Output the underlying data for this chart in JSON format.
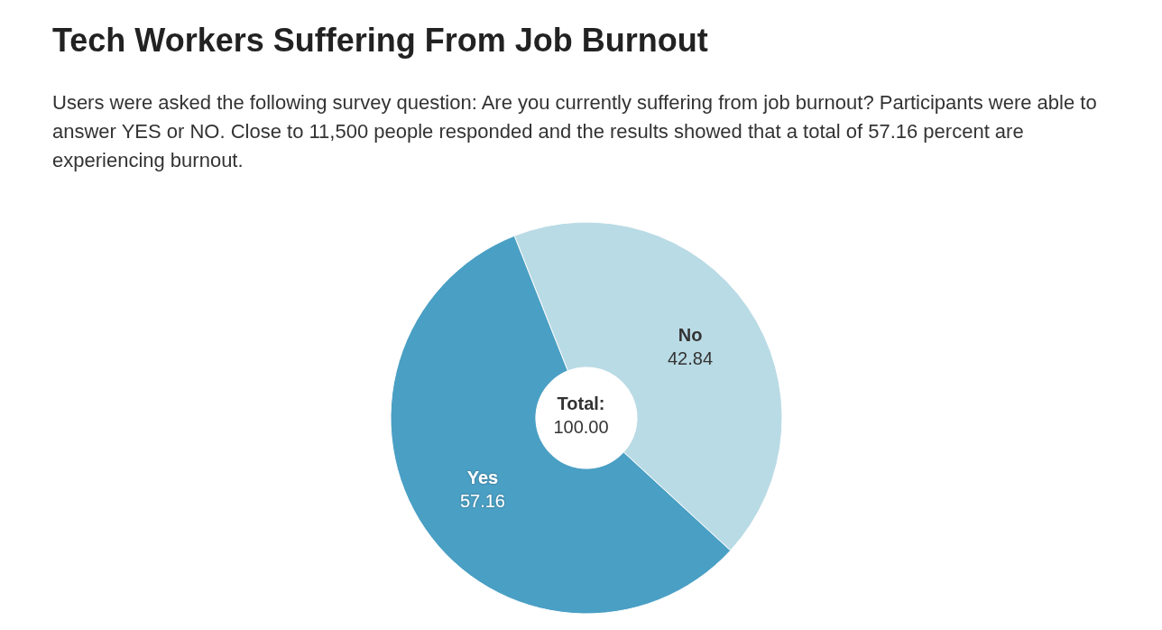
{
  "chart_data": {
    "type": "donut",
    "title": "Tech Workers Suffering From Job Burnout",
    "subtitle": "Users were asked the following survey question: Are you currently suffering from job burnout? Participants were able to answer YES or NO. Close to 11,500 people responded and the results showed that a total of 57.16 percent are experiencing burnout.",
    "categories": [
      "No",
      "Yes"
    ],
    "values": [
      42.84,
      57.16
    ],
    "colors": [
      "#b9dbe5",
      "#4a9fc4"
    ],
    "data_labels": true,
    "annotations": [
      "Total:",
      "100.00"
    ],
    "legend": false
  }
}
